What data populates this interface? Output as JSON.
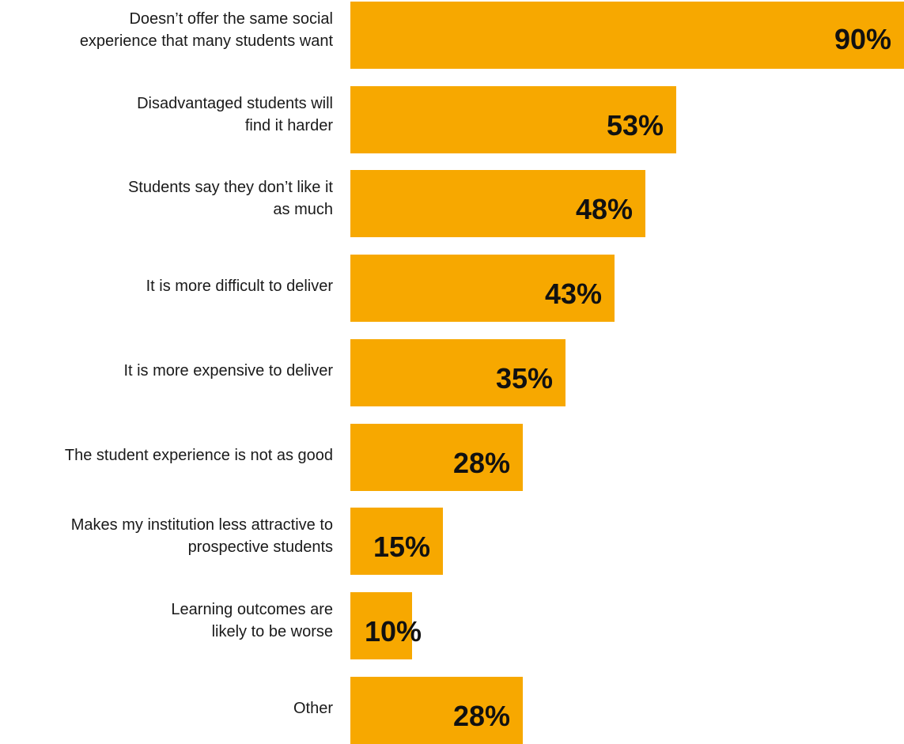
{
  "chart_data": {
    "type": "bar",
    "orientation": "horizontal",
    "bar_color": "#F7A800",
    "categories": [
      "Doesn’t offer the same social experience that many students want",
      "Disadvantaged students will find it harder",
      "Students say they don’t like it as much",
      "It is more difficult to deliver",
      "It is more expensive to deliver",
      "The student experience is not as good",
      "Makes my institution less attractive to prospective students",
      "Learning outcomes are likely to be worse",
      "Other"
    ],
    "label_lines": [
      [
        "Doesn’t offer the same social",
        "experience that many students want"
      ],
      [
        "Disadvantaged students will",
        "find it harder"
      ],
      [
        "Students say they don’t like it",
        "as much"
      ],
      [
        "It is more difficult to deliver"
      ],
      [
        "It is more expensive to deliver"
      ],
      [
        "The student experience is not as good"
      ],
      [
        "Makes my institution less attractive to",
        "prospective students"
      ],
      [
        "Learning outcomes are",
        "likely to be worse"
      ],
      [
        "Other"
      ]
    ],
    "values": [
      90,
      53,
      48,
      43,
      35,
      28,
      15,
      10,
      28
    ],
    "value_labels": [
      "90%",
      "53%",
      "48%",
      "43%",
      "35%",
      "28%",
      "15%",
      "10%",
      "28%"
    ],
    "xlim": [
      0,
      90
    ]
  }
}
